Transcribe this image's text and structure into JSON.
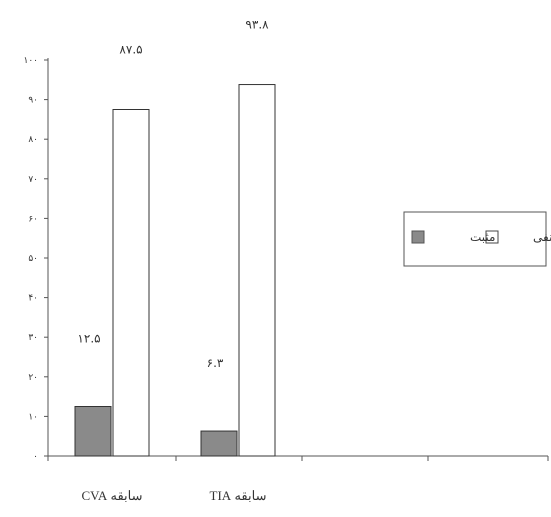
{
  "chart_data": {
    "type": "bar",
    "categories": [
      "سابقه CVA",
      "سابقه TIA"
    ],
    "ylim": [
      0,
      100
    ],
    "yticks": [
      0,
      10,
      20,
      30,
      40,
      50,
      60,
      70,
      80,
      90,
      100
    ],
    "ytick_labels": [
      "۰",
      "۱۰",
      "۲۰",
      "۳۰",
      "۴۰",
      "۵۰",
      "۶۰",
      "۷۰",
      "۸۰",
      "۹۰",
      "۱۰۰"
    ],
    "series": [
      {
        "name": "مثبت",
        "color": "#8a8a8a",
        "values": [
          12.5,
          6.3
        ],
        "labels": [
          "۱۲.۵",
          "۶.۳"
        ]
      },
      {
        "name": "منفی",
        "color": "#ffffff",
        "values": [
          87.5,
          93.8
        ],
        "labels": [
          "۸۷.۵",
          "۹۳.۸"
        ]
      }
    ],
    "legend_position": "right",
    "grid": false
  }
}
